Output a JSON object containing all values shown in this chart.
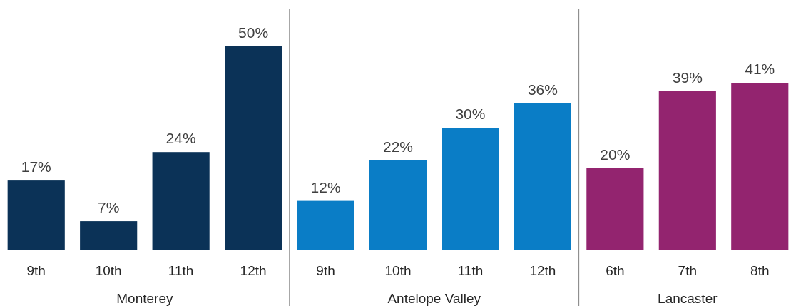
{
  "chart_data": [
    {
      "type": "bar",
      "xlabel": "Monterey",
      "categories": [
        "9th",
        "10th",
        "11th",
        "12th"
      ],
      "values": [
        17,
        7,
        24,
        50
      ],
      "value_labels": [
        "17%",
        "7%",
        "24%",
        "50%"
      ],
      "color": "#0b3257"
    },
    {
      "type": "bar",
      "xlabel": "Antelope Valley",
      "categories": [
        "9th",
        "10th",
        "11th",
        "12th"
      ],
      "values": [
        12,
        22,
        30,
        36
      ],
      "value_labels": [
        "12%",
        "22%",
        "30%",
        "36%"
      ],
      "color": "#0a7dc6"
    },
    {
      "type": "bar",
      "xlabel": "Lancaster",
      "categories": [
        "6th",
        "7th",
        "8th"
      ],
      "values": [
        20,
        39,
        41
      ],
      "value_labels": [
        "20%",
        "39%",
        "41%"
      ],
      "color": "#93246f"
    }
  ]
}
